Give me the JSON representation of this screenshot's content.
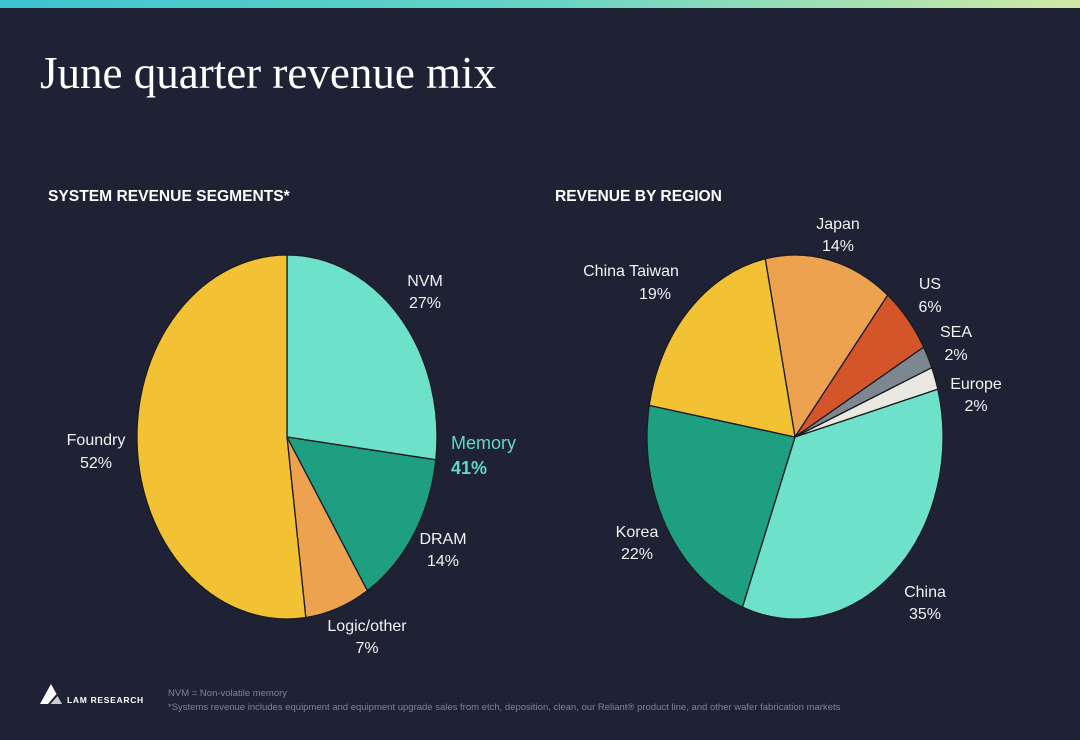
{
  "slide": {
    "title": "June quarter revenue mix",
    "background": "#1f2235",
    "accent_gradient": [
      "#3ec3d0",
      "#66d4c5",
      "#d2e9a6"
    ]
  },
  "chart_data": [
    {
      "type": "pie",
      "title": "SYSTEM REVENUE SEGMENTS*",
      "slices": [
        {
          "label": "NVM",
          "value": 27,
          "value_label": "27%",
          "color": "#6de1c9"
        },
        {
          "label": "DRAM",
          "value": 14,
          "value_label": "14%",
          "color": "#1e9f81"
        },
        {
          "label": "Logic/other",
          "value": 7,
          "value_label": "7%",
          "color": "#eca24f"
        },
        {
          "label": "Foundry",
          "value": 52,
          "value_label": "52%",
          "color": "#f3c234"
        }
      ],
      "group_annotation": {
        "label": "Memory",
        "value_label": "41%",
        "color": "#5fd7cb"
      }
    },
    {
      "type": "pie",
      "title": "REVENUE BY REGION",
      "slices": [
        {
          "label": "Japan",
          "value": 14,
          "value_label": "14%",
          "color": "#eca24f"
        },
        {
          "label": "US",
          "value": 6,
          "value_label": "6%",
          "color": "#d4552a"
        },
        {
          "label": "SEA",
          "value": 2,
          "value_label": "2%",
          "color": "#7d8790"
        },
        {
          "label": "Europe",
          "value": 2,
          "value_label": "2%",
          "color": "#e9e8e1"
        },
        {
          "label": "China",
          "value": 35,
          "value_label": "35%",
          "color": "#6de1c9"
        },
        {
          "label": "Korea",
          "value": 22,
          "value_label": "22%",
          "color": "#1e9f81"
        },
        {
          "label": "China Taiwan",
          "value": 19,
          "value_label": "19%",
          "color": "#f3c234"
        }
      ]
    }
  ],
  "footer": {
    "brand": "LAM RESEARCH",
    "notes": [
      "NVM = Non-volatile memory",
      "*Systems revenue includes equipment and equipment upgrade sales from etch, deposition, clean, our  Reliant® product line, and other wafer fabrication markets"
    ]
  }
}
